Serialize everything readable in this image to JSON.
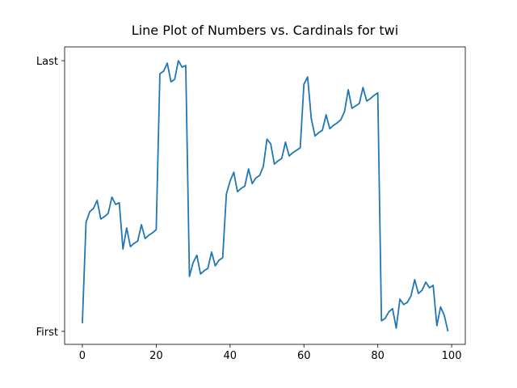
{
  "chart_data": {
    "type": "line",
    "title": "Line Plot of Numbers vs. Cardinals for twi",
    "x": [
      0,
      1,
      2,
      3,
      4,
      5,
      6,
      7,
      8,
      9,
      10,
      11,
      12,
      13,
      14,
      15,
      16,
      17,
      18,
      19,
      20,
      21,
      22,
      23,
      24,
      25,
      26,
      27,
      28,
      29,
      30,
      31,
      32,
      33,
      34,
      35,
      36,
      37,
      38,
      39,
      40,
      41,
      42,
      43,
      44,
      45,
      46,
      47,
      48,
      49,
      50,
      51,
      52,
      53,
      54,
      55,
      56,
      57,
      58,
      59,
      60,
      61,
      62,
      63,
      64,
      65,
      66,
      67,
      68,
      69,
      70,
      71,
      72,
      73,
      74,
      75,
      76,
      77,
      78,
      79,
      80,
      81,
      82,
      83,
      84,
      85,
      86,
      87,
      88,
      89,
      90,
      91,
      92,
      93,
      94,
      95,
      96,
      97,
      98,
      99
    ],
    "series": [
      {
        "name": "twi",
        "color": "#1f77b4",
        "values": [
          0.03,
          0.403,
          0.442,
          0.454,
          0.484,
          0.415,
          0.424,
          0.436,
          0.496,
          0.469,
          0.475,
          0.304,
          0.382,
          0.313,
          0.325,
          0.334,
          0.394,
          0.343,
          0.355,
          0.364,
          0.376,
          0.952,
          0.961,
          0.991,
          0.922,
          0.931,
          1.0,
          0.976,
          0.982,
          0.203,
          0.254,
          0.281,
          0.212,
          0.224,
          0.233,
          0.293,
          0.242,
          0.263,
          0.272,
          0.507,
          0.555,
          0.588,
          0.516,
          0.528,
          0.537,
          0.6,
          0.546,
          0.567,
          0.576,
          0.609,
          0.71,
          0.693,
          0.618,
          0.63,
          0.639,
          0.699,
          0.648,
          0.66,
          0.669,
          0.678,
          0.913,
          0.94,
          0.785,
          0.722,
          0.734,
          0.743,
          0.8,
          0.749,
          0.761,
          0.77,
          0.782,
          0.812,
          0.893,
          0.824,
          0.833,
          0.842,
          0.901,
          0.851,
          0.86,
          0.872,
          0.881,
          0.039,
          0.048,
          0.072,
          0.084,
          0.012,
          0.119,
          0.099,
          0.107,
          0.131,
          0.191,
          0.14,
          0.152,
          0.182,
          0.161,
          0.17,
          0.021,
          0.09,
          0.06,
          0
        ]
      }
    ],
    "xlim": [
      -4.8,
      103.7
    ],
    "xticks": [
      0,
      20,
      40,
      60,
      80,
      100
    ],
    "ylim": [
      -0.048,
      1.051
    ],
    "yticks": [
      {
        "value": 0,
        "label": "First"
      },
      {
        "value": 1,
        "label": "Last"
      }
    ]
  }
}
